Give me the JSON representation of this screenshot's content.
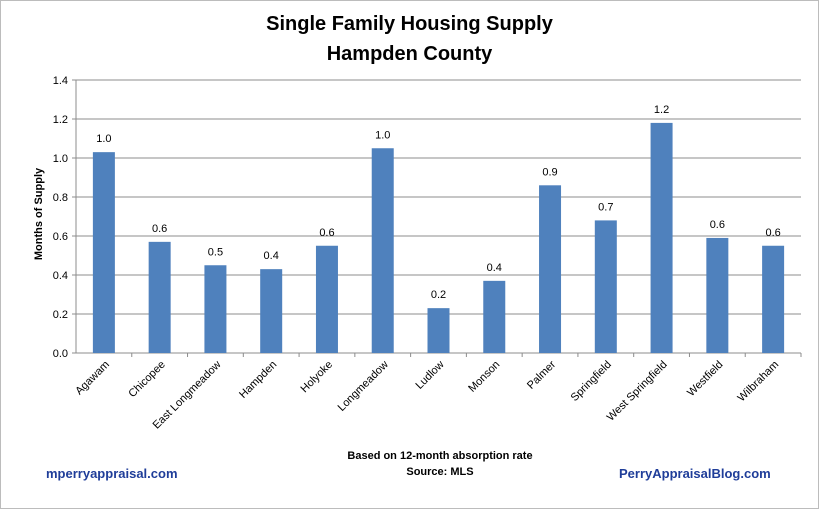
{
  "title_line1": "Single Family Housing Supply",
  "title_line2": "Hampden County",
  "chart_data": {
    "type": "bar",
    "title": "Single Family Housing Supply Hampden County",
    "ylabel": "Months of Supply",
    "xlabel": "",
    "ylim": [
      0,
      1.4
    ],
    "y_ticks": [
      "0.0",
      "0.2",
      "0.4",
      "0.6",
      "0.8",
      "1.0",
      "1.2",
      "1.4"
    ],
    "grid": true,
    "bar_color": "#4f81bd",
    "categories": [
      "Agawam",
      "Chicopee",
      "East Longmeadow",
      "Hampden",
      "Holyoke",
      "Longmeadow",
      "Ludlow",
      "Monson",
      "Palmer",
      "Springfield",
      "West Springfield",
      "Westfield",
      "Wilbraham"
    ],
    "values": [
      1.03,
      0.57,
      0.45,
      0.43,
      0.55,
      1.05,
      0.23,
      0.37,
      0.86,
      0.68,
      1.18,
      0.59,
      0.55
    ],
    "data_labels": [
      "1.0",
      "0.6",
      "0.5",
      "0.4",
      "0.6",
      "1.0",
      "0.2",
      "0.4",
      "0.9",
      "0.7",
      "1.2",
      "0.6",
      "0.6"
    ]
  },
  "footer": {
    "note_line1": "Based on 12-month absorption rate",
    "note_line2": "Source: MLS",
    "left_link": "mperryappraisal.com",
    "right_link": "PerryAppraisalBlog.com"
  }
}
